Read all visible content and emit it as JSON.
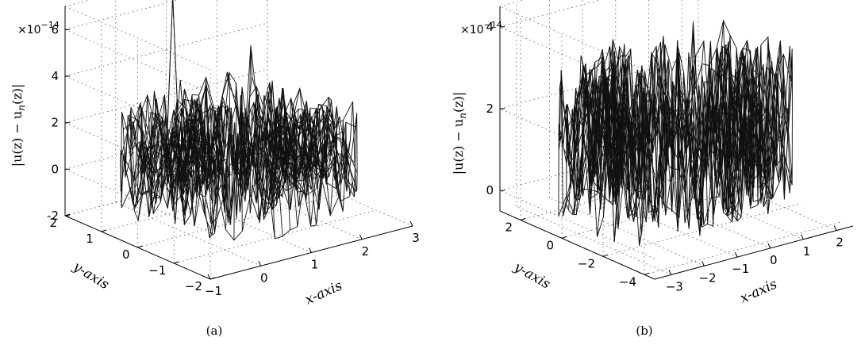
{
  "chart_data": [
    {
      "type": "surface",
      "panel": "(a)",
      "xlabel": "x-axis",
      "ylabel": "y-axis",
      "zlabel": "|u(z) − u_n(z)|",
      "zlabel_parts": {
        "pre": "|u(z) − u",
        "sub": "n",
        "post": "(z)|"
      },
      "z_multiplier": {
        "base": "×10",
        "exp": "−14"
      },
      "x_ticks": [
        -1,
        0,
        1,
        2,
        3
      ],
      "y_ticks": [
        -2,
        -1,
        0,
        1,
        2
      ],
      "z_ticks": [
        -2,
        0,
        2,
        4,
        6
      ],
      "xlim": [
        -1,
        3
      ],
      "ylim": [
        -2,
        2
      ],
      "zlim": [
        -2,
        7
      ],
      "grid": true,
      "annulus": {
        "center": [
          1,
          0
        ],
        "inner_radius": 0.6,
        "outer_radius": 1.9
      },
      "noise_range": [
        -1.2,
        3.0
      ],
      "spikes": [
        {
          "x": 1.0,
          "y": 1.7,
          "z": 6.5
        },
        {
          "x": 2.2,
          "y": 1.3,
          "z": 4.0
        },
        {
          "x": -0.2,
          "y": 0.3,
          "z": 3.0
        }
      ]
    },
    {
      "type": "surface",
      "panel": "(b)",
      "xlabel": "x-axis",
      "ylabel": "y-axis",
      "zlabel": "|u(z) − u_n(z)|",
      "zlabel_parts": {
        "pre": "|u(z) − u",
        "sub": "n",
        "post": "(z)|"
      },
      "z_multiplier": {
        "base": "×10",
        "exp": "−14"
      },
      "x_ticks": [
        -3,
        -2,
        -1,
        0,
        1,
        2
      ],
      "y_ticks": [
        -4,
        -2,
        0,
        2
      ],
      "z_ticks": [
        0,
        2,
        4
      ],
      "xlim": [
        -3.5,
        2.5
      ],
      "ylim": [
        -4.5,
        3
      ],
      "zlim": [
        -0.5,
        4.5
      ],
      "grid": true,
      "annulus": {
        "center": [
          -0.5,
          -0.7
        ],
        "inner_radius": 1.4,
        "outer_radius": 3.0
      },
      "noise_range": [
        -0.3,
        3.5
      ],
      "spikes": []
    }
  ]
}
